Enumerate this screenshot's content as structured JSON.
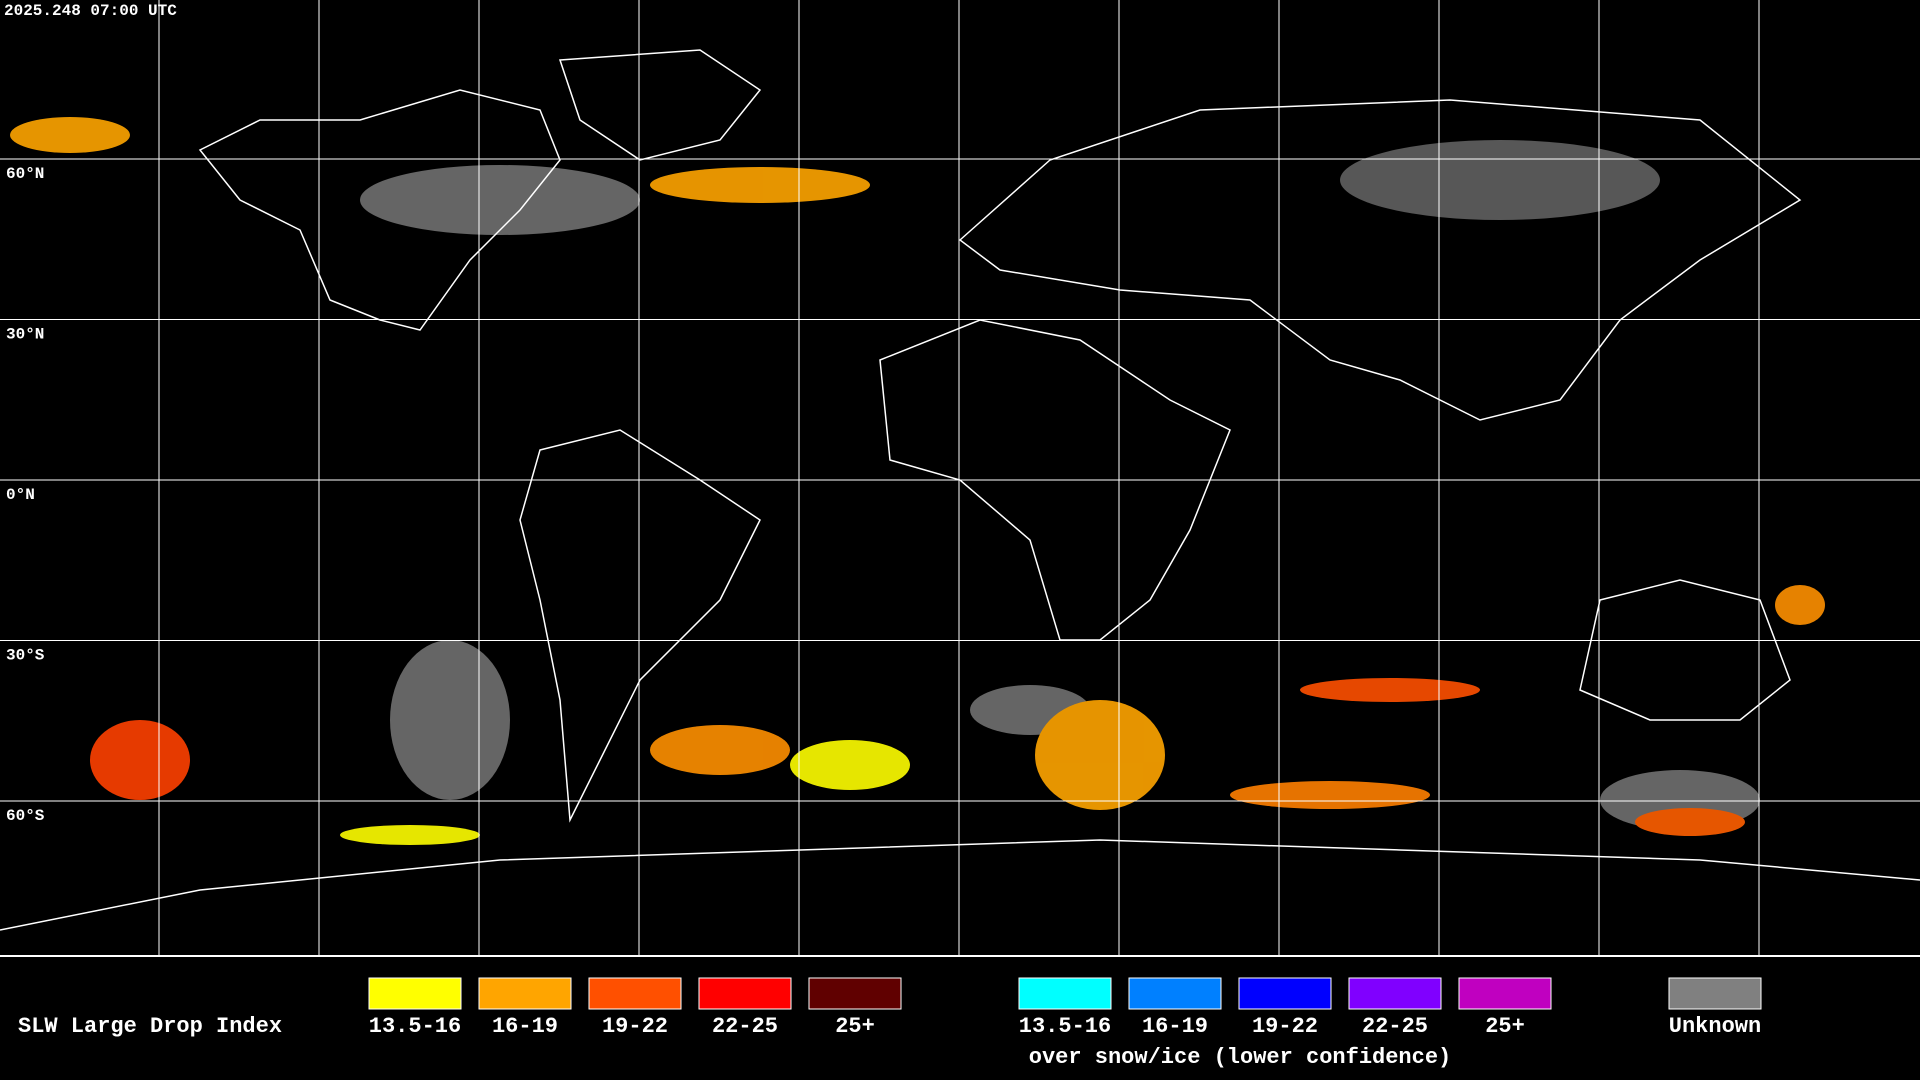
{
  "header": {
    "timestamp": "2025.248 07:00 UTC"
  },
  "grid": {
    "lat_labels": [
      "60°N",
      "30°N",
      "0°N",
      "30°S",
      "60°S"
    ]
  },
  "legend": {
    "title": "SLW Large Drop Index",
    "items": [
      {
        "label": "13.5-16",
        "color": "#ffff00"
      },
      {
        "label": "16-19",
        "color": "#ffa500"
      },
      {
        "label": "19-22",
        "color": "#ff5000"
      },
      {
        "label": "22-25",
        "color": "#ff0000"
      },
      {
        "label": "25+",
        "color": "#600000"
      }
    ],
    "snow_items": [
      {
        "label": "13.5-16",
        "color": "#00ffff"
      },
      {
        "label": "16-19",
        "color": "#0080ff"
      },
      {
        "label": "19-22",
        "color": "#0000ff"
      },
      {
        "label": "22-25",
        "color": "#8000ff"
      },
      {
        "label": "25+",
        "color": "#c000c0"
      }
    ],
    "snow_note": "over snow/ice (lower confidence)",
    "unknown": {
      "label": "Unknown",
      "color": "#808080"
    }
  }
}
